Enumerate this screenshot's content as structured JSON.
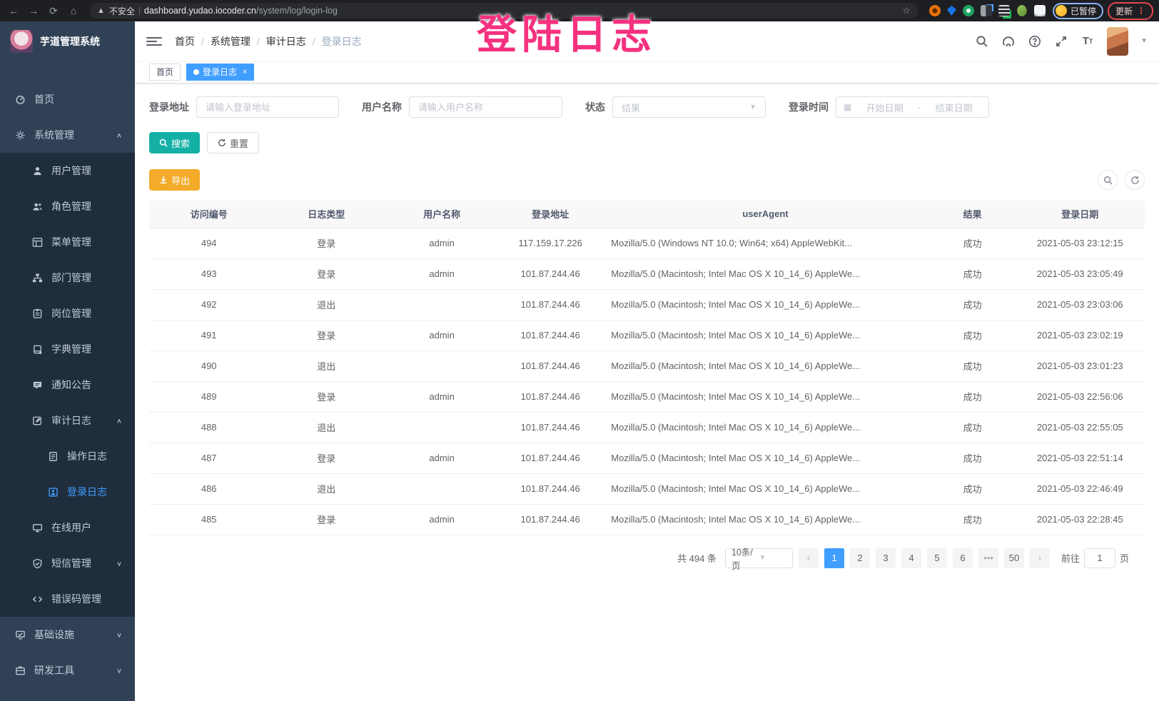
{
  "colors": {
    "accent": "#409eff",
    "search_button": "#14b0a6",
    "export_button": "#f3ab29",
    "overlay": "#f5317f",
    "sidebar_bg": "#304156",
    "submenu_bg": "#1f2d3d"
  },
  "browser": {
    "security_label": "不安全",
    "url_host": "dashboard.yudao.iocoder.cn",
    "url_path": "/system/log/login-log",
    "paused_badge": "已暂停",
    "update_button": "更新"
  },
  "overlay": {
    "text": "登陆日志"
  },
  "sidebar": {
    "title": "芋道管理系统",
    "menu": [
      {
        "label": "首页",
        "icon": "dashboard-icon",
        "level": 1
      },
      {
        "label": "系统管理",
        "icon": "gear-icon",
        "level": 1,
        "arrow": "up"
      },
      {
        "label": "用户管理",
        "icon": "user-icon",
        "level": 2
      },
      {
        "label": "角色管理",
        "icon": "peoples-icon",
        "level": 2
      },
      {
        "label": "菜单管理",
        "icon": "tree-table-icon",
        "level": 2
      },
      {
        "label": "部门管理",
        "icon": "tree-icon",
        "level": 2
      },
      {
        "label": "岗位管理",
        "icon": "post-icon",
        "level": 2
      },
      {
        "label": "字典管理",
        "icon": "dict-icon",
        "level": 2
      },
      {
        "label": "通知公告",
        "icon": "message-icon",
        "level": 2
      },
      {
        "label": "审计日志",
        "icon": "log-icon",
        "level": 2,
        "arrow": "up"
      },
      {
        "label": "操作日志",
        "icon": "form-icon",
        "level": 3
      },
      {
        "label": "登录日志",
        "icon": "logininfor-icon",
        "level": 3,
        "active": true
      },
      {
        "label": "在线用户",
        "icon": "online-icon",
        "level": 2
      },
      {
        "label": "短信管理",
        "icon": "sms-icon",
        "level": 2,
        "arrow": "down"
      },
      {
        "label": "错误码管理",
        "icon": "code-icon",
        "level": 2
      },
      {
        "label": "基础设施",
        "icon": "infra-icon",
        "level": 1,
        "arrow": "down"
      },
      {
        "label": "研发工具",
        "icon": "tools-icon",
        "level": 1,
        "arrow": "down"
      }
    ]
  },
  "navbar": {
    "breadcrumbs": [
      "首页",
      "系统管理",
      "审计日志",
      "登录日志"
    ]
  },
  "tags": [
    {
      "label": "首页",
      "active": false
    },
    {
      "label": "登录日志",
      "active": true,
      "closable": true
    }
  ],
  "filters": {
    "login_address_label": "登录地址",
    "login_address_placeholder": "请输入登录地址",
    "username_label": "用户名称",
    "username_placeholder": "请输入用户名称",
    "status_label": "状态",
    "status_placeholder": "结果",
    "login_time_label": "登录时间",
    "date_start_placeholder": "开始日期",
    "date_separator": "-",
    "date_end_placeholder": "结束日期",
    "search_button": "搜索",
    "reset_button": "重置",
    "export_button": "导出"
  },
  "table": {
    "columns": [
      "访问编号",
      "日志类型",
      "用户名称",
      "登录地址",
      "userAgent",
      "结果",
      "登录日期"
    ],
    "rows": [
      [
        "494",
        "登录",
        "admin",
        "117.159.17.226",
        "Mozilla/5.0 (Windows NT 10.0; Win64; x64) AppleWebKit...",
        "成功",
        "2021-05-03 23:12:15"
      ],
      [
        "493",
        "登录",
        "admin",
        "101.87.244.46",
        "Mozilla/5.0 (Macintosh; Intel Mac OS X 10_14_6) AppleWe...",
        "成功",
        "2021-05-03 23:05:49"
      ],
      [
        "492",
        "退出",
        "",
        "101.87.244.46",
        "Mozilla/5.0 (Macintosh; Intel Mac OS X 10_14_6) AppleWe...",
        "成功",
        "2021-05-03 23:03:06"
      ],
      [
        "491",
        "登录",
        "admin",
        "101.87.244.46",
        "Mozilla/5.0 (Macintosh; Intel Mac OS X 10_14_6) AppleWe...",
        "成功",
        "2021-05-03 23:02:19"
      ],
      [
        "490",
        "退出",
        "",
        "101.87.244.46",
        "Mozilla/5.0 (Macintosh; Intel Mac OS X 10_14_6) AppleWe...",
        "成功",
        "2021-05-03 23:01:23"
      ],
      [
        "489",
        "登录",
        "admin",
        "101.87.244.46",
        "Mozilla/5.0 (Macintosh; Intel Mac OS X 10_14_6) AppleWe...",
        "成功",
        "2021-05-03 22:56:06"
      ],
      [
        "488",
        "退出",
        "",
        "101.87.244.46",
        "Mozilla/5.0 (Macintosh; Intel Mac OS X 10_14_6) AppleWe...",
        "成功",
        "2021-05-03 22:55:05"
      ],
      [
        "487",
        "登录",
        "admin",
        "101.87.244.46",
        "Mozilla/5.0 (Macintosh; Intel Mac OS X 10_14_6) AppleWe...",
        "成功",
        "2021-05-03 22:51:14"
      ],
      [
        "486",
        "退出",
        "",
        "101.87.244.46",
        "Mozilla/5.0 (Macintosh; Intel Mac OS X 10_14_6) AppleWe...",
        "成功",
        "2021-05-03 22:46:49"
      ],
      [
        "485",
        "登录",
        "admin",
        "101.87.244.46",
        "Mozilla/5.0 (Macintosh; Intel Mac OS X 10_14_6) AppleWe...",
        "成功",
        "2021-05-03 22:28:45"
      ]
    ]
  },
  "pagination": {
    "total_text": "共 494 条",
    "page_size": "10条/页",
    "pages": [
      "1",
      "2",
      "3",
      "4",
      "5",
      "6",
      "•••",
      "50"
    ],
    "active_page": "1",
    "goto_label": "前往",
    "goto_value": "1",
    "goto_suffix": "页"
  }
}
